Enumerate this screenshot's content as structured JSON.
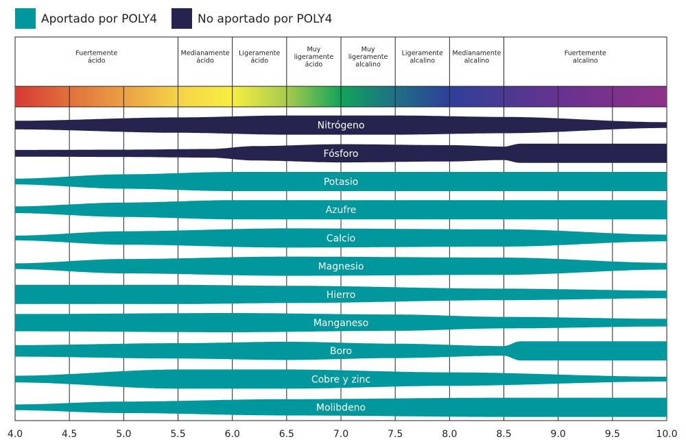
{
  "legend": {
    "supplied": {
      "label": "Aportado por POLY4",
      "color": "#00979d"
    },
    "not_supplied": {
      "label": "No aportado por POLY4",
      "color": "#27234f"
    }
  },
  "chart_data": {
    "type": "area",
    "xlim": [
      4.0,
      10.0
    ],
    "ticks": [
      "4.0",
      "4.5",
      "5.0",
      "5.5",
      "6.0",
      "6.5",
      "7.0",
      "7.5",
      "8.0",
      "8.5",
      "9.0",
      "9.5",
      "10.0"
    ],
    "ph_zones": [
      {
        "label": "Fuertemente ácido",
        "from": 4.0,
        "to": 5.5
      },
      {
        "label": "Medianamente ácido",
        "from": 5.5,
        "to": 6.0
      },
      {
        "label": "Ligeramente ácido",
        "from": 6.0,
        "to": 6.5
      },
      {
        "label": "Muy ligeramente ácido",
        "from": 6.5,
        "to": 7.0
      },
      {
        "label": "Muy ligeramente alcalino",
        "from": 7.0,
        "to": 7.5
      },
      {
        "label": "Ligeramente alcalino",
        "from": 7.5,
        "to": 8.0
      },
      {
        "label": "Medianamente alcalino",
        "from": 8.0,
        "to": 8.5
      },
      {
        "label": "Fuertemente alcalino",
        "from": 8.5,
        "to": 10.0
      }
    ],
    "ph_colors": [
      [
        4.0,
        "#d63a34"
      ],
      [
        4.5,
        "#e0703c"
      ],
      [
        5.0,
        "#eaa044"
      ],
      [
        5.5,
        "#f5d348"
      ],
      [
        6.0,
        "#f7ee40"
      ],
      [
        6.5,
        "#a8cb4e"
      ],
      [
        7.0,
        "#12a45a"
      ],
      [
        7.5,
        "#1f6f86"
      ],
      [
        8.0,
        "#2e3f97"
      ],
      [
        8.5,
        "#4b3a93"
      ],
      [
        9.0,
        "#66328f"
      ],
      [
        10.0,
        "#8f3289"
      ]
    ],
    "series": [
      {
        "name": "Nitrógeno",
        "group": "not_supplied",
        "profile": [
          [
            4.0,
            0.45
          ],
          [
            5.5,
            0.8
          ],
          [
            6.5,
            1.0
          ],
          [
            7.5,
            1.0
          ],
          [
            8.5,
            0.85
          ],
          [
            10.0,
            0.3
          ]
        ]
      },
      {
        "name": "Fósforo",
        "group": "not_supplied",
        "profile": [
          [
            4.0,
            0.35
          ],
          [
            5.0,
            0.38
          ],
          [
            5.8,
            0.45
          ],
          [
            6.2,
            0.75
          ],
          [
            7.0,
            0.95
          ],
          [
            8.0,
            0.85
          ],
          [
            8.5,
            0.7
          ],
          [
            8.65,
            1.0
          ],
          [
            10.0,
            1.0
          ]
        ]
      },
      {
        "name": "Potasio",
        "group": "supplied",
        "profile": [
          [
            4.0,
            0.3
          ],
          [
            5.0,
            0.75
          ],
          [
            6.0,
            1.0
          ],
          [
            10.0,
            1.0
          ]
        ]
      },
      {
        "name": "Azufre",
        "group": "supplied",
        "profile": [
          [
            4.0,
            0.35
          ],
          [
            5.0,
            0.75
          ],
          [
            6.0,
            1.0
          ],
          [
            10.0,
            1.0
          ]
        ]
      },
      {
        "name": "Calcio",
        "group": "supplied",
        "profile": [
          [
            4.0,
            0.25
          ],
          [
            5.0,
            0.7
          ],
          [
            6.5,
            1.0
          ],
          [
            8.5,
            0.9
          ],
          [
            10.0,
            0.35
          ]
        ]
      },
      {
        "name": "Magnesio",
        "group": "supplied",
        "profile": [
          [
            4.0,
            0.3
          ],
          [
            5.0,
            0.75
          ],
          [
            6.5,
            1.0
          ],
          [
            8.5,
            0.9
          ],
          [
            10.0,
            0.35
          ]
        ]
      },
      {
        "name": "Hierro",
        "group": "supplied",
        "profile": [
          [
            4.0,
            1.0
          ],
          [
            5.5,
            1.0
          ],
          [
            6.5,
            0.9
          ],
          [
            8.5,
            0.6
          ],
          [
            10.0,
            0.4
          ]
        ]
      },
      {
        "name": "Manganeso",
        "group": "supplied",
        "profile": [
          [
            4.0,
            0.9
          ],
          [
            6.0,
            1.0
          ],
          [
            7.5,
            0.85
          ],
          [
            8.5,
            0.6
          ],
          [
            10.0,
            0.4
          ]
        ]
      },
      {
        "name": "Boro",
        "group": "supplied",
        "profile": [
          [
            4.0,
            0.6
          ],
          [
            5.5,
            0.8
          ],
          [
            6.5,
            0.95
          ],
          [
            7.5,
            0.75
          ],
          [
            8.5,
            0.5
          ],
          [
            8.65,
            1.0
          ],
          [
            10.0,
            1.0
          ]
        ]
      },
      {
        "name": "Cobre y zinc",
        "group": "supplied",
        "profile": [
          [
            4.0,
            0.35
          ],
          [
            5.5,
            1.0
          ],
          [
            6.5,
            1.0
          ],
          [
            8.0,
            0.7
          ],
          [
            10.0,
            0.25
          ]
        ]
      },
      {
        "name": "Molibdeno",
        "group": "supplied",
        "profile": [
          [
            4.0,
            0.3
          ],
          [
            5.0,
            0.6
          ],
          [
            6.5,
            0.85
          ],
          [
            8.5,
            1.0
          ],
          [
            10.0,
            1.0
          ]
        ]
      }
    ]
  }
}
